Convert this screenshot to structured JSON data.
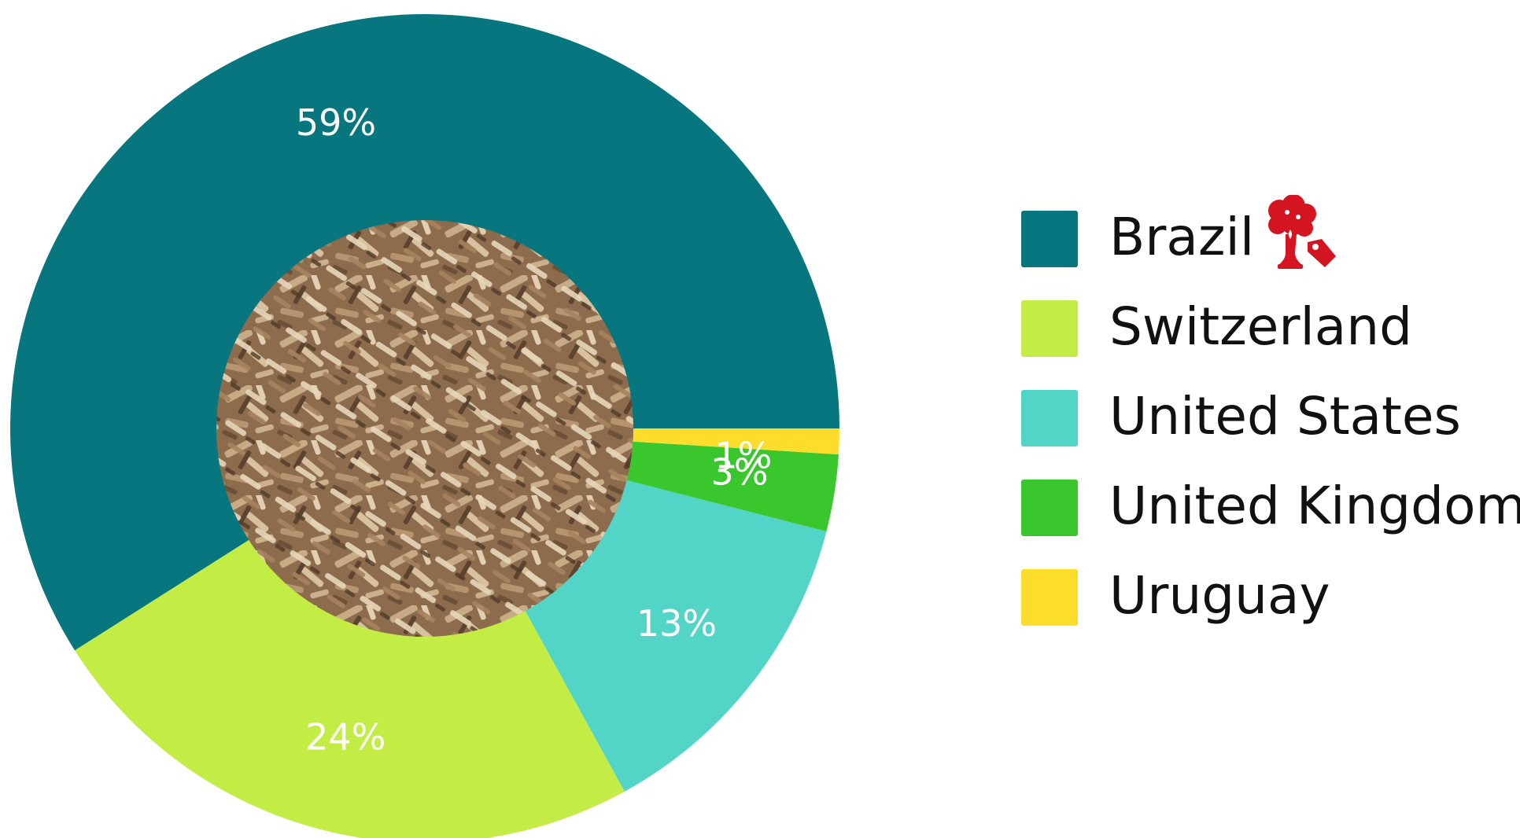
{
  "chart_data": {
    "type": "pie",
    "variant": "donut",
    "title": "",
    "categories": [
      "Brazil",
      "Switzerland",
      "United States",
      "United Kingdom",
      "Uruguay"
    ],
    "values": [
      59,
      24,
      13,
      3,
      1
    ],
    "value_labels": [
      "59%",
      "24%",
      "13%",
      "3%",
      "1%"
    ],
    "colors": [
      "#07767e",
      "#c3ec45",
      "#52d5c7",
      "#3ac62d",
      "#fddd2b"
    ],
    "start": "3 o'clock",
    "direction": "counter-clockwise",
    "legend_position": "right",
    "center_image": "wood-chips-photo"
  },
  "legend": {
    "items": [
      {
        "label": "Brazil",
        "color": "#07767e"
      },
      {
        "label": "Switzerland",
        "color": "#c3ec45"
      },
      {
        "label": "United States",
        "color": "#52d5c7"
      },
      {
        "label": "United Kingdom",
        "color": "#3ac62d"
      },
      {
        "label": "Uruguay",
        "color": "#fddd2b"
      }
    ],
    "brand_icon": {
      "name": "tree-tag-icon",
      "color": "#d51422"
    }
  }
}
